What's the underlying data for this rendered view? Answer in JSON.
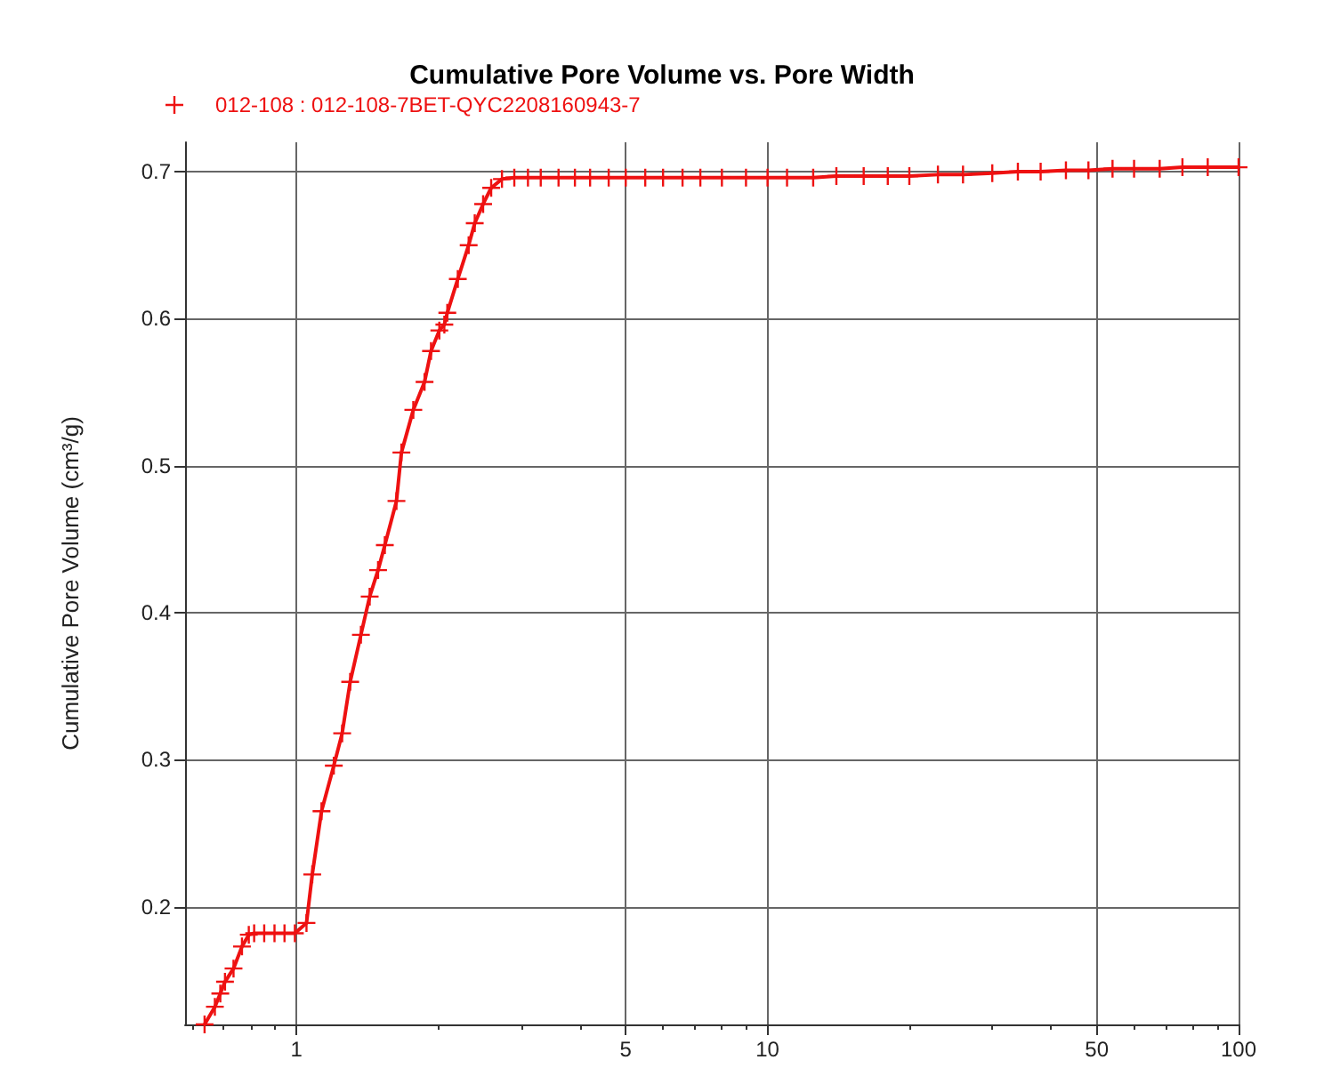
{
  "chart_data": {
    "type": "line",
    "title": "Cumulative Pore Volume vs. Pore Width",
    "ylabel": "Cumulative Pore Volume (cm³/g)",
    "log": "x",
    "grid": true,
    "legend": "top left",
    "marker": "cross",
    "line_style": "solid",
    "xlim": [
      0.58,
      100
    ],
    "xticks": [
      1,
      5,
      10,
      50,
      100
    ],
    "ylim": [
      0.12,
      0.72
    ],
    "yticks": [
      0.2,
      0.3,
      0.4,
      0.5,
      0.6,
      0.7
    ],
    "series": [
      {
        "name": "012-108 : 012-108-7BET-QYC2208160943-7",
        "color": "#ee1111",
        "x": [
          0.638,
          0.671,
          0.689,
          0.705,
          0.735,
          0.766,
          0.792,
          0.813,
          0.854,
          0.898,
          0.943,
          0.992,
          1.05,
          1.08,
          1.13,
          1.2,
          1.25,
          1.3,
          1.37,
          1.43,
          1.49,
          1.54,
          1.63,
          1.67,
          1.77,
          1.87,
          1.93,
          2.01,
          2.06,
          2.09,
          2.2,
          2.32,
          2.39,
          2.49,
          2.59,
          2.73,
          2.9,
          3.1,
          3.3,
          3.6,
          3.9,
          4.2,
          4.6,
          5,
          5.5,
          6,
          6.6,
          7.2,
          8,
          9,
          10,
          11,
          12.5,
          14,
          16,
          18,
          20,
          23,
          26,
          30,
          34,
          38,
          43,
          48,
          54,
          60,
          68,
          76,
          86,
          100
        ],
        "values": [
          0.12,
          0.132,
          0.141,
          0.149,
          0.158,
          0.173,
          0.181,
          0.182,
          0.182,
          0.182,
          0.182,
          0.182,
          0.189,
          0.222,
          0.265,
          0.296,
          0.318,
          0.353,
          0.385,
          0.411,
          0.429,
          0.446,
          0.476,
          0.509,
          0.538,
          0.557,
          0.578,
          0.592,
          0.596,
          0.604,
          0.627,
          0.65,
          0.665,
          0.678,
          0.689,
          0.695,
          0.696,
          0.696,
          0.696,
          0.696,
          0.696,
          0.696,
          0.696,
          0.696,
          0.696,
          0.696,
          0.696,
          0.696,
          0.696,
          0.696,
          0.696,
          0.696,
          0.696,
          0.697,
          0.697,
          0.697,
          0.697,
          0.698,
          0.698,
          0.699,
          0.7,
          0.7,
          0.701,
          0.701,
          0.702,
          0.702,
          0.702,
          0.703,
          0.703,
          0.703
        ]
      }
    ]
  }
}
